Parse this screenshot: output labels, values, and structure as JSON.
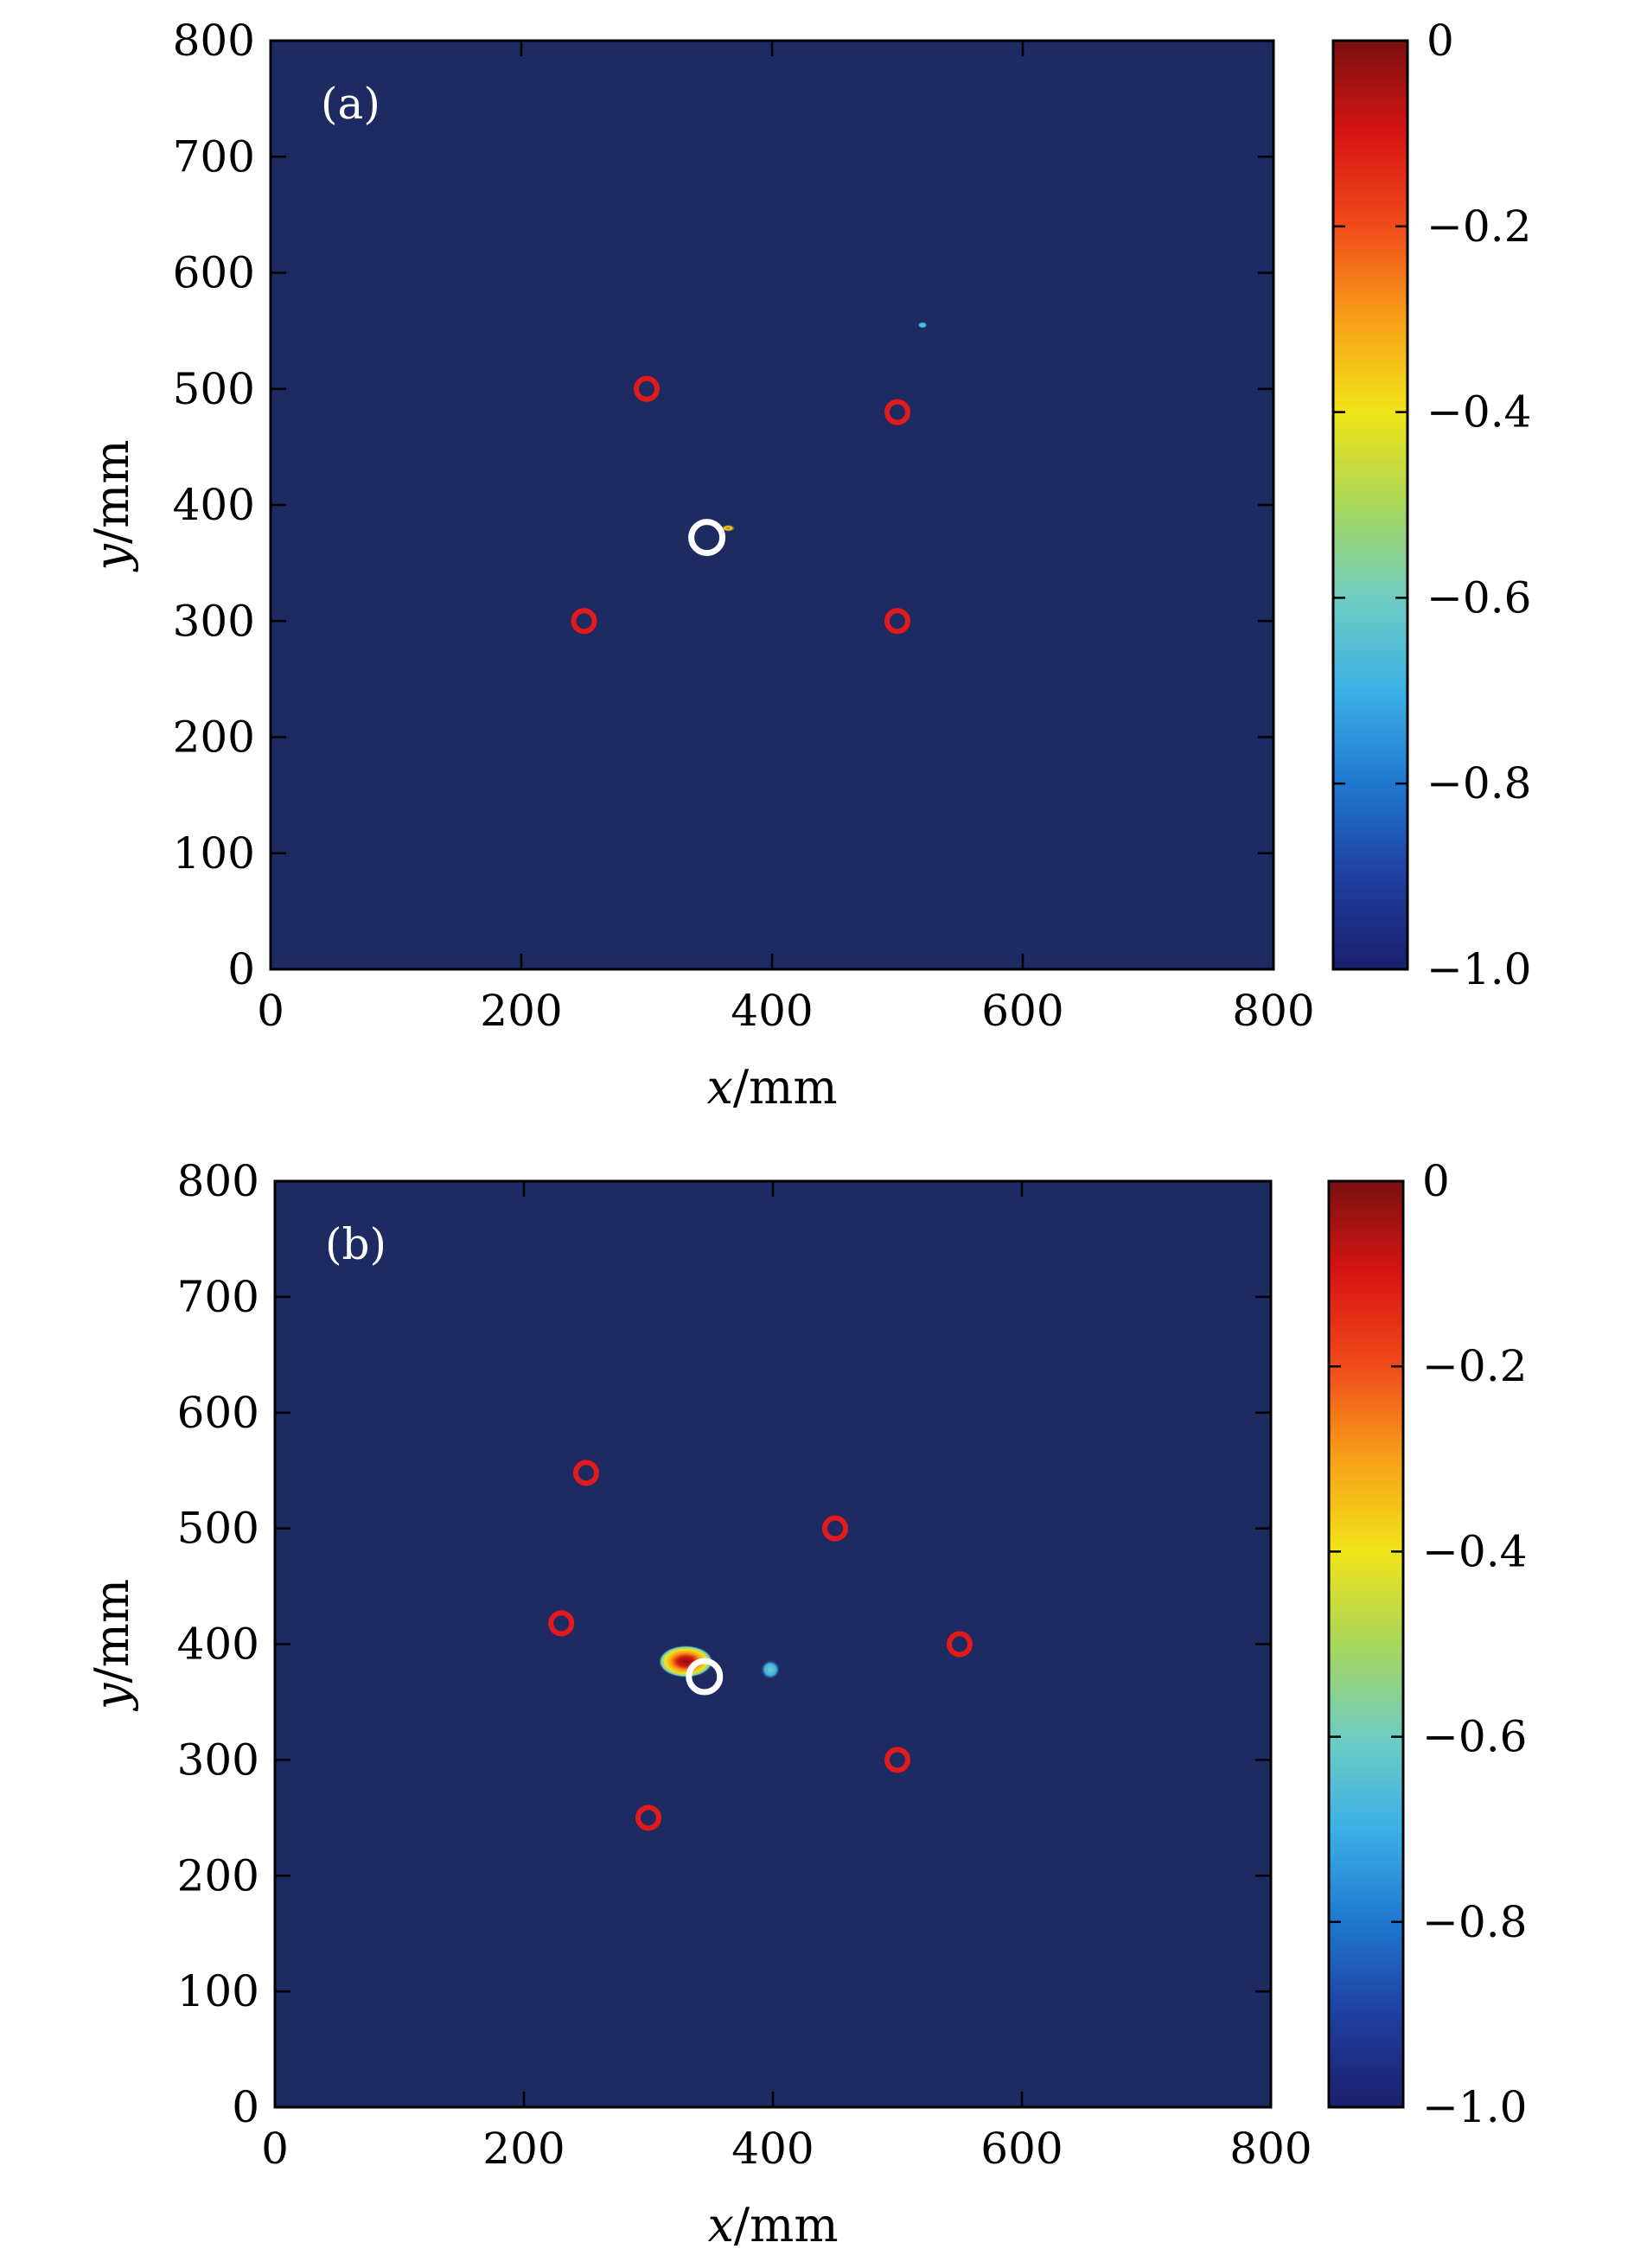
{
  "colors": {
    "background_field": "#1e2a62",
    "sensor_marker": "#e31a1c",
    "true_source_marker": "#ffffff"
  },
  "colormap": {
    "name": "jet",
    "stops": [
      "#1b1f6d",
      "#1f3fa0",
      "#1f78d0",
      "#3cb0e6",
      "#6fcdc2",
      "#a8d65a",
      "#f1e418",
      "#f8a019",
      "#f04b1a",
      "#d81513",
      "#7a1010"
    ]
  },
  "chart_data": [
    {
      "type": "heatmap",
      "panel_label": "(a)",
      "xlabel_var": "x",
      "ylabel_var": "y",
      "unit": "/mm",
      "xlim": [
        0,
        800
      ],
      "ylim": [
        0,
        800
      ],
      "xticks": [
        "0",
        "200",
        "400",
        "600",
        "800"
      ],
      "yticks": [
        "0",
        "100",
        "200",
        "300",
        "400",
        "500",
        "600",
        "700",
        "800"
      ],
      "colorbar": {
        "range": [
          -1.0,
          0
        ],
        "ticks": [
          "0",
          "−0.2",
          "−0.4",
          "−0.6",
          "−0.8",
          "−1.0"
        ]
      },
      "sensors": [
        [
          300,
          500
        ],
        [
          500,
          480
        ],
        [
          250,
          300
        ],
        [
          500,
          300
        ]
      ],
      "true_source": [
        348,
        372
      ],
      "hotspots": [
        {
          "x": 365,
          "y": 380,
          "value": -0.35,
          "rx": 6,
          "ry": 3
        },
        {
          "x": 520,
          "y": 555,
          "value": -0.65,
          "rx": 4,
          "ry": 2
        }
      ]
    },
    {
      "type": "heatmap",
      "panel_label": "(b)",
      "xlabel_var": "x",
      "ylabel_var": "y",
      "unit": "/mm",
      "xlim": [
        0,
        800
      ],
      "ylim": [
        0,
        800
      ],
      "xticks": [
        "0",
        "200",
        "400",
        "600",
        "800"
      ],
      "yticks": [
        "0",
        "100",
        "200",
        "300",
        "400",
        "500",
        "600",
        "700",
        "800"
      ],
      "colorbar": {
        "range": [
          -1.0,
          0
        ],
        "ticks": [
          "0",
          "−0.2",
          "−0.4",
          "−0.6",
          "−0.8",
          "−1.0"
        ]
      },
      "sensors": [
        [
          250,
          548
        ],
        [
          450,
          500
        ],
        [
          230,
          418
        ],
        [
          550,
          400
        ],
        [
          500,
          300
        ],
        [
          300,
          250
        ]
      ],
      "true_source": [
        345,
        372
      ],
      "hotspots": [
        {
          "x": 330,
          "y": 385,
          "value": -0.05,
          "rx": 22,
          "ry": 13
        },
        {
          "x": 398,
          "y": 378,
          "value": -0.65,
          "rx": 8,
          "ry": 8
        }
      ]
    }
  ]
}
